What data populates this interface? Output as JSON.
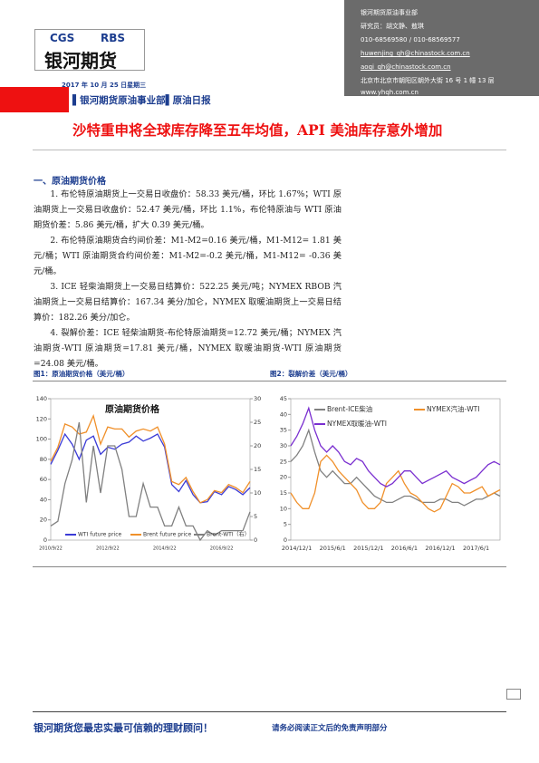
{
  "header": {
    "logo_cgs": "CGS",
    "logo_rbs": "RBS",
    "logo_name": "银河期货",
    "info": [
      "银河期货原油事业部",
      "研究员：胡文静、敖琪",
      "010-68569580 / 010-68569577",
      "huwenjing_qh@chinastock.com.cn",
      "aoqi_qh@chinastock.com.cn",
      "北京市北京市朝阳区朝外大街 16 号 1 幢 13 层",
      "www.yhqh.com.cn"
    ],
    "date": "2017 年 10 月 25 日星期三",
    "department": "银河期货原油事业部",
    "report": "原油日报"
  },
  "title": "沙特重申将全球库存降至五年均值，API 美油库存意外增加",
  "section": {
    "heading": "一、原油期货价格",
    "paragraphs": [
      "1. 布伦特原油期货上一交易日收盘价：58.33 美元/桶，环比 1.67%；WTI 原油期货上一交易日收盘价：52.47 美元/桶，环比 1.1%，布伦特原油与 WTI 原油期货价差：5.86 美元/桶，扩大 0.39 美元/桶。",
      "2. 布伦特原油期货合约间价差：M1-M2=0.16 美元/桶，M1-M12= 1.81 美元/桶；WTI 原油期货合约间价差：M1-M2=-0.2 美元/桶，M1-M12= -0.36 美元/桶。",
      "3. ICE 轻柴油期货上一交易日结算价：522.25 美元/吨；NYMEX RBOB 汽油期货上一交易日结算价：167.34 美分/加仑，NYMEX 取暖油期货上一交易日结算价：182.26 美分/加仑。",
      "4. 裂解价差：ICE 轻柴油期货-布伦特原油期货=12.72 美元/桶；NYMEX 汽油期货-WTI 原油期货=17.81 美元/桶，NYMEX 取暖油期货-WTI 原油期货=24.08 美元/桶。"
    ]
  },
  "figure_captions": [
    "图1：原油期货价格（美元/桶）",
    "图2：裂解价差（美元/桶）"
  ],
  "chart_data": [
    {
      "type": "line",
      "title": "原油期货价格",
      "categories": [
        "2010/9/22",
        null,
        null,
        null,
        null,
        null,
        null,
        null,
        "2012/9/22",
        null,
        null,
        null,
        null,
        null,
        null,
        null,
        "2014/9/22",
        null,
        null,
        null,
        null,
        null,
        null,
        null,
        "2016/9/22",
        null,
        null,
        null,
        null
      ],
      "ylim": [
        0,
        140
      ],
      "yticks": [
        0,
        20,
        40,
        60,
        80,
        100,
        120,
        140
      ],
      "y2lim": [
        0,
        30
      ],
      "y2ticks": [
        0,
        5,
        10,
        15,
        20,
        25,
        30
      ],
      "series": [
        {
          "name": "WTI future price",
          "color": "#3b3bd6",
          "values": [
            75,
            89,
            105,
            95,
            80,
            99,
            103,
            85,
            92,
            90,
            95,
            97,
            103,
            98,
            101,
            105,
            92,
            55,
            48,
            59,
            45,
            37,
            38,
            48,
            45,
            53,
            50,
            45,
            52
          ]
        },
        {
          "name": "Brent future price",
          "color": "#f0902a",
          "values": [
            78,
            92,
            115,
            112,
            105,
            107,
            123,
            95,
            112,
            110,
            110,
            102,
            108,
            110,
            108,
            112,
            95,
            58,
            55,
            62,
            48,
            37,
            40,
            49,
            47,
            55,
            52,
            47,
            58
          ]
        },
        {
          "name": "Brent-WTI（右）",
          "color": "#808080",
          "axis": "y2",
          "values": [
            3,
            4,
            12,
            17,
            25,
            8,
            20,
            10,
            20,
            20,
            15,
            5,
            5,
            12,
            7,
            7,
            3,
            3,
            7,
            3,
            3,
            0,
            2,
            1,
            2,
            2,
            2,
            2,
            6
          ]
        }
      ]
    },
    {
      "type": "line",
      "categories": [
        null,
        "2014/12/1",
        null,
        null,
        null,
        null,
        null,
        "2015/6/1",
        null,
        null,
        null,
        null,
        null,
        "2015/12/1",
        null,
        null,
        null,
        null,
        null,
        "2016/6/1",
        null,
        null,
        null,
        null,
        null,
        "2016/12/1",
        null,
        null,
        null,
        null,
        null,
        "2017/6/1",
        null,
        null,
        null,
        null
      ],
      "ylim": [
        0,
        45
      ],
      "yticks": [
        0,
        5,
        10,
        15,
        20,
        25,
        30,
        35,
        40,
        45
      ],
      "series": [
        {
          "name": "Brent-ICE柴油",
          "color": "#808080",
          "values": [
            25,
            27,
            30,
            35,
            28,
            22,
            20,
            22,
            20,
            18,
            18,
            20,
            18,
            16,
            14,
            13,
            12,
            12,
            13,
            14,
            14,
            13,
            12,
            12,
            12,
            13,
            13,
            12,
            12,
            11,
            12,
            13,
            13,
            14,
            15,
            14
          ]
        },
        {
          "name": "NYMEX汽油-WTI",
          "color": "#f0902a",
          "values": [
            15,
            12,
            10,
            10,
            15,
            25,
            27,
            25,
            22,
            20,
            18,
            16,
            12,
            10,
            10,
            12,
            18,
            20,
            22,
            18,
            15,
            14,
            12,
            10,
            9,
            10,
            14,
            18,
            17,
            15,
            15,
            16,
            17,
            14,
            15,
            16
          ]
        },
        {
          "name": "NYMEX取暖油-WTI",
          "color": "#7a2fd0",
          "values": [
            30,
            33,
            37,
            42,
            35,
            30,
            28,
            30,
            28,
            25,
            24,
            26,
            25,
            22,
            20,
            18,
            17,
            18,
            20,
            22,
            22,
            20,
            18,
            19,
            20,
            21,
            22,
            20,
            19,
            18,
            19,
            20,
            22,
            24,
            25,
            24
          ]
        }
      ]
    }
  ],
  "footer": {
    "slogan": "银河期货您最忠实最可信赖的理财顾问！",
    "disclaimer": "请务必阅读正文后的免责声明部分"
  }
}
